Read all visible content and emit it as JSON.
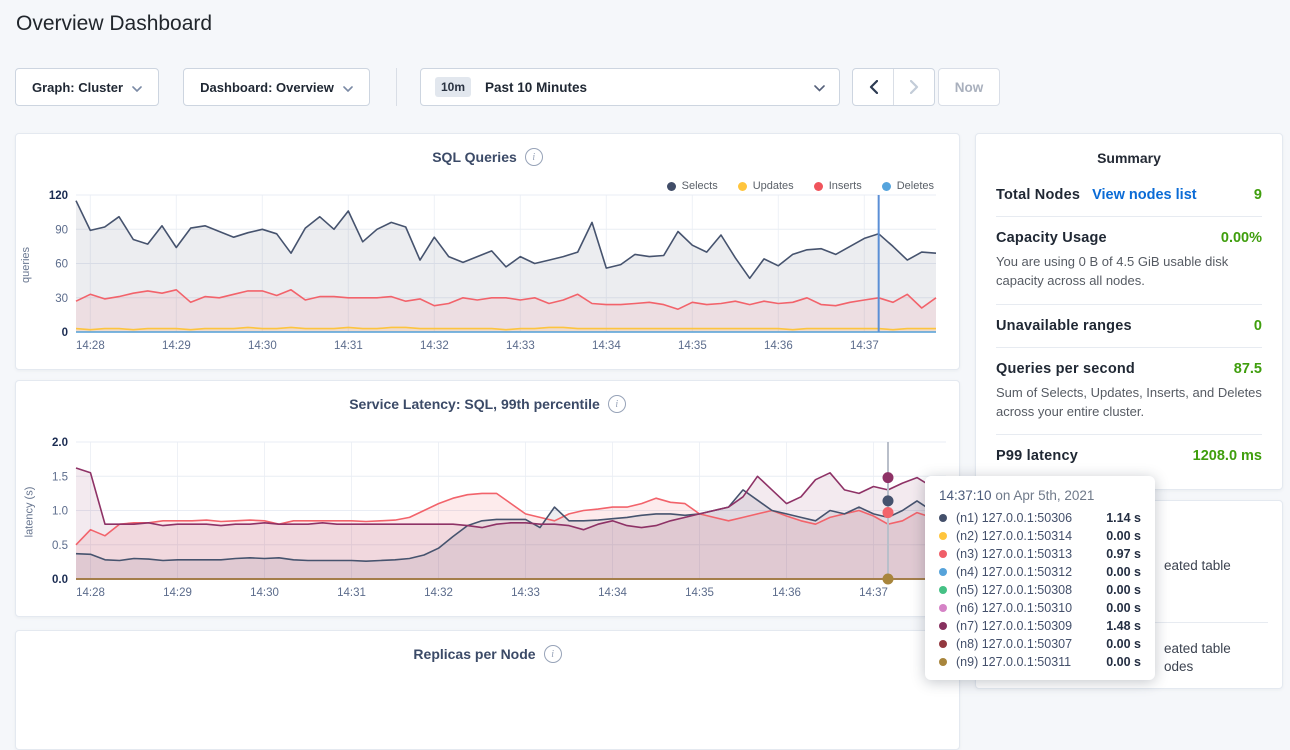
{
  "page": {
    "title": "Overview Dashboard"
  },
  "controls": {
    "graph_dropdown": "Graph: Cluster",
    "dashboard_dropdown": "Dashboard: Overview",
    "time_badge": "10m",
    "time_label": "Past 10 Minutes",
    "now_label": "Now"
  },
  "summary": {
    "title": "Summary",
    "rows": [
      {
        "label": "Total Nodes",
        "link": "View nodes list",
        "value": "9"
      },
      {
        "label": "Capacity Usage",
        "value": "0.00%",
        "caption": "You are using 0 B of 4.5 GiB usable disk capacity across all nodes."
      },
      {
        "label": "Unavailable ranges",
        "value": "0"
      },
      {
        "label": "Queries per second",
        "value": "87.5",
        "caption": "Sum of Selects, Updates, Inserts, and Deletes across your entire cluster."
      },
      {
        "label": "P99 latency",
        "value": "1208.0 ms"
      }
    ]
  },
  "events": {
    "fragments": [
      "eated table",
      "eated table",
      "odes"
    ]
  },
  "tooltip": {
    "time": "14:37:10",
    "date": " on Apr 5th, 2021",
    "nodes": [
      {
        "id": "(n1)",
        "addr": "127.0.0.1:50306",
        "value": "1.14 s",
        "color": "#44506b"
      },
      {
        "id": "(n2)",
        "addr": "127.0.0.1:50314",
        "value": "0.00 s",
        "color": "#ffc53d"
      },
      {
        "id": "(n3)",
        "addr": "127.0.0.1:50313",
        "value": "0.97 s",
        "color": "#f05e68"
      },
      {
        "id": "(n4)",
        "addr": "127.0.0.1:50312",
        "value": "0.00 s",
        "color": "#56a3da"
      },
      {
        "id": "(n5)",
        "addr": "127.0.0.1:50308",
        "value": "0.00 s",
        "color": "#45c185"
      },
      {
        "id": "(n6)",
        "addr": "127.0.0.1:50310",
        "value": "0.00 s",
        "color": "#d583c6"
      },
      {
        "id": "(n7)",
        "addr": "127.0.0.1:50309",
        "value": "1.48 s",
        "color": "#87305f"
      },
      {
        "id": "(n8)",
        "addr": "127.0.0.1:50307",
        "value": "0.00 s",
        "color": "#93383f"
      },
      {
        "id": "(n9)",
        "addr": "127.0.0.1:50311",
        "value": "0.00 s",
        "color": "#a8853c"
      }
    ]
  },
  "chart_data": [
    {
      "type": "area",
      "title": "SQL Queries",
      "ylabel": "queries",
      "ylim": [
        0,
        120
      ],
      "yticks": [
        0,
        30,
        60,
        90,
        120
      ],
      "x_start": "14:27:50",
      "x_step_seconds": 10,
      "x_total_seconds": 600,
      "xticks": [
        {
          "label": "14:28",
          "s": 10
        },
        {
          "label": "14:29",
          "s": 70
        },
        {
          "label": "14:30",
          "s": 130
        },
        {
          "label": "14:31",
          "s": 190
        },
        {
          "label": "14:32",
          "s": 250
        },
        {
          "label": "14:33",
          "s": 310
        },
        {
          "label": "14:34",
          "s": 370
        },
        {
          "label": "14:35",
          "s": 430
        },
        {
          "label": "14:36",
          "s": 490
        },
        {
          "label": "14:37",
          "s": 550
        }
      ],
      "legend": [
        {
          "label": "Selects",
          "color": "#414d68"
        },
        {
          "label": "Updates",
          "color": "#ffc53d"
        },
        {
          "label": "Inserts",
          "color": "#f0545c"
        },
        {
          "label": "Deletes",
          "color": "#55a4dd"
        }
      ],
      "hover": {
        "time": "14:37:10",
        "s": 560,
        "line_color": "#5b8fd6"
      },
      "series": [
        {
          "name": "Selects",
          "color": "#46536e",
          "fill": "rgba(70,83,110,0.10)",
          "values": [
            115,
            89,
            92,
            101,
            81,
            77,
            93,
            74,
            91,
            93,
            88,
            83,
            87,
            90,
            86,
            69,
            91,
            101,
            90,
            106,
            79,
            90,
            96,
            92,
            63,
            83,
            66,
            61,
            66,
            71,
            57,
            66,
            60,
            63,
            66,
            70,
            96,
            56,
            59,
            68,
            66,
            67,
            88,
            76,
            70,
            85,
            65,
            47,
            64,
            58,
            68,
            72,
            73,
            68,
            75,
            82,
            86,
            75,
            63,
            70,
            69
          ]
        },
        {
          "name": "Inserts",
          "color": "#f2636b",
          "fill": "rgba(242,99,107,0.10)",
          "values": [
            27,
            33,
            29,
            31,
            34,
            36,
            34,
            37,
            26,
            31,
            30,
            33,
            36,
            36,
            32,
            37,
            28,
            31,
            31,
            30,
            30,
            30,
            31,
            27,
            29,
            23,
            25,
            30,
            28,
            30,
            30,
            28,
            30,
            25,
            28,
            33,
            25,
            24,
            24,
            25,
            26,
            24,
            20,
            26,
            24,
            25,
            27,
            24,
            27,
            25,
            26,
            30,
            24,
            23,
            26,
            28,
            30,
            26,
            33,
            21,
            30
          ]
        },
        {
          "name": "Updates",
          "color": "#fdc43f",
          "fill": "rgba(253,196,63,0.12)",
          "values": [
            3,
            2,
            3,
            3,
            2,
            3,
            3,
            3,
            2,
            3,
            3,
            3,
            4,
            3,
            3,
            4,
            3,
            3,
            3,
            4,
            3,
            3,
            4,
            4,
            3,
            3,
            3,
            3,
            3,
            3,
            2,
            3,
            3,
            4,
            4,
            3,
            3,
            3,
            3,
            3,
            3,
            3,
            3,
            3,
            3,
            3,
            3,
            3,
            3,
            3,
            2,
            3,
            3,
            3,
            3,
            3,
            3,
            2,
            3,
            3,
            3
          ]
        },
        {
          "name": "Deletes",
          "color": "#5aa6dc",
          "fill": null,
          "constant": 0
        }
      ]
    },
    {
      "type": "area",
      "title": "Service Latency: SQL, 99th percentile",
      "ylabel": "latency (s)",
      "ylim": [
        0,
        2.0
      ],
      "yticks": [
        0.0,
        0.5,
        1.0,
        1.5,
        2.0
      ],
      "x_start": "14:27:50",
      "x_step_seconds": 10,
      "x_total_seconds": 600,
      "xticks": [
        {
          "label": "14:28",
          "s": 10
        },
        {
          "label": "14:29",
          "s": 70
        },
        {
          "label": "14:30",
          "s": 130
        },
        {
          "label": "14:31",
          "s": 190
        },
        {
          "label": "14:32",
          "s": 250
        },
        {
          "label": "14:33",
          "s": 310
        },
        {
          "label": "14:34",
          "s": 370
        },
        {
          "label": "14:35",
          "s": 430
        },
        {
          "label": "14:36",
          "s": 490
        },
        {
          "label": "14:37",
          "s": 550
        }
      ],
      "hover": {
        "time": "14:37:10",
        "s": 560,
        "line_color": "#b9bfca",
        "dots": [
          {
            "color": "#8e3266",
            "value": 1.48
          },
          {
            "color": "#46536e",
            "value": 1.14
          },
          {
            "color": "#f2636b",
            "value": 0.97
          },
          {
            "color": "#a8853c",
            "value": 0.0
          }
        ]
      },
      "series": [
        {
          "name": "(n3) 127.0.0.1:50313",
          "color": "#f2636b",
          "fill": "rgba(242,99,107,0.13)",
          "values": [
            0.5,
            0.72,
            0.63,
            0.8,
            0.82,
            0.82,
            0.85,
            0.85,
            0.85,
            0.86,
            0.84,
            0.85,
            0.86,
            0.85,
            0.8,
            0.85,
            0.85,
            0.85,
            0.85,
            0.85,
            0.84,
            0.85,
            0.86,
            0.9,
            1.0,
            1.1,
            1.18,
            1.23,
            1.25,
            1.25,
            1.1,
            0.95,
            0.9,
            0.85,
            0.95,
            1.0,
            1.02,
            1.05,
            1.05,
            1.1,
            1.18,
            1.12,
            1.1,
            0.95,
            0.9,
            0.85,
            0.9,
            0.95,
            1.0,
            0.92,
            0.85,
            0.8,
            0.9,
            0.95,
            1.0,
            0.92,
            0.8,
            0.85,
            0.97,
            0.9,
            1.0
          ]
        },
        {
          "name": "(n1) 127.0.0.1:50306",
          "color": "#46536e",
          "fill": "rgba(70,83,110,0.10)",
          "values": [
            0.37,
            0.36,
            0.28,
            0.27,
            0.3,
            0.29,
            0.27,
            0.28,
            0.28,
            0.28,
            0.28,
            0.3,
            0.31,
            0.3,
            0.31,
            0.28,
            0.27,
            0.27,
            0.27,
            0.27,
            0.26,
            0.27,
            0.28,
            0.3,
            0.35,
            0.45,
            0.62,
            0.78,
            0.85,
            0.87,
            0.87,
            0.87,
            0.75,
            1.05,
            0.85,
            0.85,
            0.86,
            0.88,
            0.9,
            0.93,
            0.95,
            0.95,
            0.93,
            0.95,
            1.0,
            1.05,
            1.3,
            1.15,
            1.0,
            0.95,
            0.9,
            0.85,
            1.0,
            0.95,
            1.05,
            0.95,
            0.9,
            1.0,
            1.14,
            1.0,
            1.05
          ]
        },
        {
          "name": "(n7) 127.0.0.1:50309",
          "color": "#8e3266",
          "fill": "rgba(142,50,102,0.10)",
          "values": [
            1.62,
            1.55,
            0.8,
            0.8,
            0.8,
            0.82,
            0.78,
            0.8,
            0.8,
            0.8,
            0.78,
            0.8,
            0.8,
            0.82,
            0.8,
            0.8,
            0.8,
            0.82,
            0.8,
            0.8,
            0.8,
            0.8,
            0.8,
            0.8,
            0.8,
            0.8,
            0.8,
            0.78,
            0.75,
            0.8,
            0.82,
            0.82,
            0.8,
            0.8,
            0.78,
            0.72,
            0.8,
            0.85,
            0.78,
            0.75,
            0.78,
            0.85,
            0.9,
            0.95,
            1.0,
            1.05,
            1.2,
            1.5,
            1.3,
            1.1,
            1.2,
            1.45,
            1.55,
            1.3,
            1.25,
            1.35,
            1.3,
            1.4,
            1.48,
            1.35,
            1.4
          ]
        },
        {
          "name": "(n2) 127.0.0.1:50314",
          "color": "#ffc53d",
          "fill": null,
          "constant": 0
        },
        {
          "name": "(n4) 127.0.0.1:50312",
          "color": "#56a3da",
          "fill": null,
          "constant": 0
        },
        {
          "name": "(n5) 127.0.0.1:50308",
          "color": "#45c185",
          "fill": null,
          "constant": 0
        },
        {
          "name": "(n6) 127.0.0.1:50310",
          "color": "#d583c6",
          "fill": null,
          "constant": 0
        },
        {
          "name": "(n8) 127.0.0.1:50307",
          "color": "#93383f",
          "fill": null,
          "constant": 0
        },
        {
          "name": "(n9) 127.0.0.1:50311",
          "color": "#a8853c",
          "fill": null,
          "constant": 0
        }
      ]
    },
    {
      "type": "line",
      "title": "Replicas per Node",
      "note": "chart body cut off at viewport bottom"
    }
  ]
}
